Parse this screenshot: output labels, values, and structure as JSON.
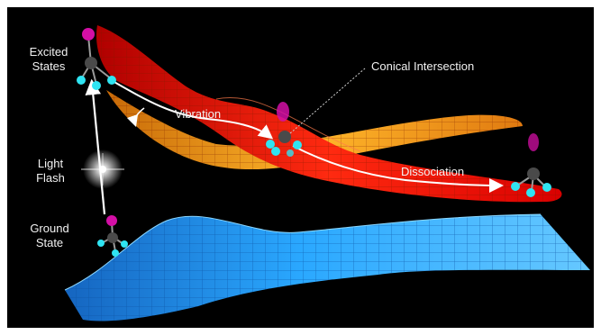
{
  "labels": {
    "excited_states": [
      "Excited",
      "States"
    ],
    "light_flash": [
      "Light",
      "Flash"
    ],
    "ground_state": [
      "Ground",
      "State"
    ],
    "conical_intersection": "Conical Intersection",
    "vibration": "Vibration",
    "dissociation": "Dissociation"
  },
  "colors": {
    "background": "#000000",
    "frame": "#ffffff",
    "excited_surface_red": "#e8120a",
    "excited_surface_orange": "#f2a11c",
    "ground_surface_blue": "#1fa0ff",
    "atom_iodine": "#d40fa6",
    "atom_carbon": "#4a4a4a",
    "atom_hydrogen": "#2fe4f2",
    "arrow": "#ffffff"
  }
}
